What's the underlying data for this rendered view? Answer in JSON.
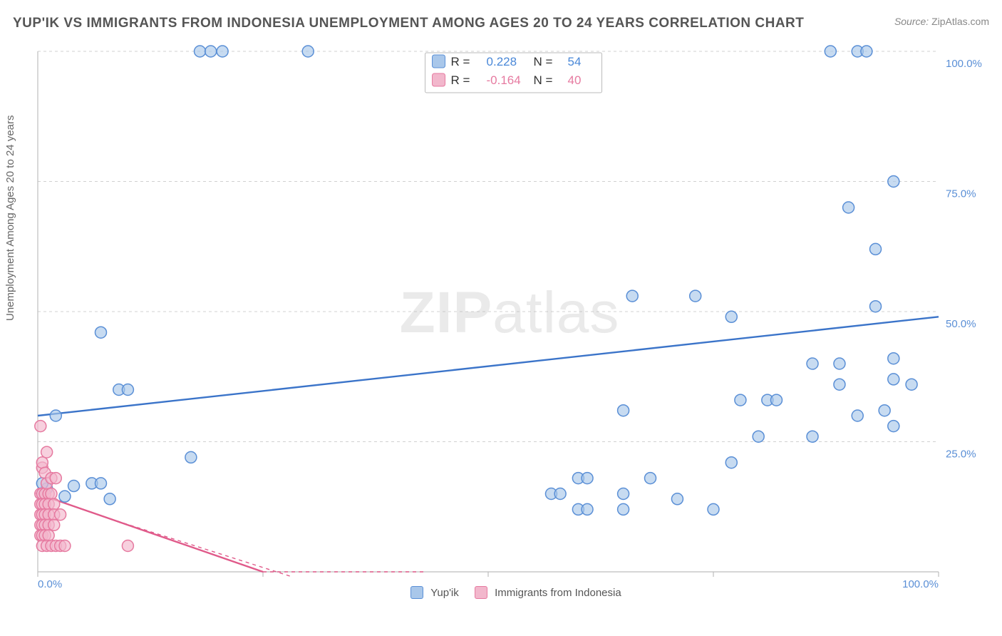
{
  "title": "YUP'IK VS IMMIGRANTS FROM INDONESIA UNEMPLOYMENT AMONG AGES 20 TO 24 YEARS CORRELATION CHART",
  "source_label": "Source:",
  "source_value": "ZipAtlas.com",
  "ylabel": "Unemployment Among Ages 20 to 24 years",
  "watermark_bold": "ZIP",
  "watermark_rest": "atlas",
  "chart": {
    "type": "scatter-with-trends",
    "xlim": [
      0,
      100
    ],
    "ylim": [
      0,
      100
    ],
    "x_ticks": [
      0,
      25,
      50,
      75,
      100
    ],
    "y_ticks": [
      25,
      50,
      75,
      100
    ],
    "x_tick_labels_visible": {
      "0": "0.0%",
      "100": "100.0%"
    },
    "y_tick_labels": {
      "25": "25.0%",
      "50": "50.0%",
      "75": "75.0%",
      "100": "100.0%"
    },
    "grid_color": "#d0d0d0",
    "background_color": "#ffffff",
    "axis_color": "#bdbdbd"
  },
  "series": [
    {
      "name": "Yup'ik",
      "R": "0.228",
      "N": "54",
      "fill": "#a9c7ea",
      "stroke": "#5a8fd6",
      "trend_color": "#3b74c9",
      "trend_y_at_x0": 30,
      "trend_y_at_x100": 49,
      "marker_r": 8,
      "points": [
        [
          18,
          100
        ],
        [
          19.2,
          100
        ],
        [
          20.5,
          100
        ],
        [
          30,
          100
        ],
        [
          88,
          100
        ],
        [
          91,
          100
        ],
        [
          92,
          100
        ],
        [
          95,
          75
        ],
        [
          90,
          70
        ],
        [
          93,
          62
        ],
        [
          66,
          53
        ],
        [
          73,
          53
        ],
        [
          93,
          51
        ],
        [
          77,
          49
        ],
        [
          7,
          46
        ],
        [
          89,
          40
        ],
        [
          86,
          40
        ],
        [
          95,
          41
        ],
        [
          97,
          36
        ],
        [
          89,
          36
        ],
        [
          95,
          37
        ],
        [
          9,
          35
        ],
        [
          10,
          35
        ],
        [
          2,
          30
        ],
        [
          65,
          31
        ],
        [
          81,
          33
        ],
        [
          82,
          33
        ],
        [
          78,
          33
        ],
        [
          94,
          31
        ],
        [
          91,
          30
        ],
        [
          95,
          28
        ],
        [
          80,
          26
        ],
        [
          86,
          26
        ],
        [
          17,
          22
        ],
        [
          77,
          21
        ],
        [
          60,
          18
        ],
        [
          61,
          18
        ],
        [
          68,
          18
        ],
        [
          65,
          15
        ],
        [
          57,
          15
        ],
        [
          58,
          15
        ],
        [
          71,
          14
        ],
        [
          60,
          12
        ],
        [
          61,
          12
        ],
        [
          65,
          12
        ],
        [
          75,
          12
        ],
        [
          0.5,
          15
        ],
        [
          4,
          16.5
        ],
        [
          6,
          17
        ],
        [
          7,
          17
        ],
        [
          8,
          14
        ],
        [
          3,
          14.5
        ],
        [
          1,
          16
        ],
        [
          0.5,
          17
        ]
      ]
    },
    {
      "name": "Immigrants from Indonesia",
      "R": "-0.164",
      "N": "40",
      "fill": "#f2b7cc",
      "stroke": "#e67aa0",
      "trend_color": "#e05a8a",
      "trend_y_at_x0": 15,
      "trend_y_at_x100": -45,
      "marker_r": 8,
      "points": [
        [
          0.3,
          28
        ],
        [
          0.5,
          20
        ],
        [
          0.5,
          21
        ],
        [
          0.8,
          19
        ],
        [
          1,
          23
        ],
        [
          0.3,
          15
        ],
        [
          0.5,
          15
        ],
        [
          0.8,
          15
        ],
        [
          1.2,
          15
        ],
        [
          1.5,
          15
        ],
        [
          0.3,
          13
        ],
        [
          0.5,
          13
        ],
        [
          0.8,
          13
        ],
        [
          1.2,
          13
        ],
        [
          1.8,
          13
        ],
        [
          0.3,
          11
        ],
        [
          0.5,
          11
        ],
        [
          0.8,
          11
        ],
        [
          1.2,
          11
        ],
        [
          1.8,
          11
        ],
        [
          2.5,
          11
        ],
        [
          0.3,
          9
        ],
        [
          0.5,
          9
        ],
        [
          0.8,
          9
        ],
        [
          1.2,
          9
        ],
        [
          1.8,
          9
        ],
        [
          0.3,
          7
        ],
        [
          0.5,
          7
        ],
        [
          0.8,
          7
        ],
        [
          1.2,
          7
        ],
        [
          0.5,
          5
        ],
        [
          1,
          5
        ],
        [
          1.5,
          5
        ],
        [
          2,
          5
        ],
        [
          2.5,
          5
        ],
        [
          3,
          5
        ],
        [
          10,
          5
        ],
        [
          1,
          17
        ],
        [
          1.5,
          18
        ],
        [
          2,
          18
        ]
      ]
    }
  ],
  "legend": {
    "r_label": "R  =",
    "n_label": "N  =",
    "bottom": [
      {
        "label": "Yup'ik",
        "fill": "#a9c7ea",
        "stroke": "#5a8fd6"
      },
      {
        "label": "Immigrants from Indonesia",
        "fill": "#f2b7cc",
        "stroke": "#e67aa0"
      }
    ]
  }
}
